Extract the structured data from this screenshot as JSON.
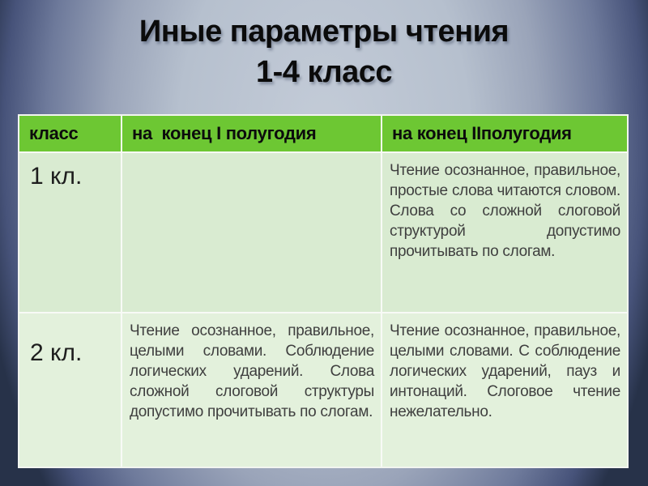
{
  "title": {
    "line1": "Иные параметры чтения",
    "line2": "1-4 класс"
  },
  "table": {
    "headers": [
      "класс",
      "на  конец I полугодия",
      "на конец IIполугодия"
    ],
    "rows": [
      {
        "klass": "1 кл.",
        "sem1": "",
        "sem2": "Чтение осознанное, правильное, простые слова читаются словом. Слова со сложной слоговой структурой допустимо прочитывать по слогам."
      },
      {
        "klass": "2 кл.",
        "sem1": "Чтение осознанное, правильное, целыми словами. Соблюдение логических ударений. Слова сложной слоговой структуры допустимо прочитывать по слогам.",
        "sem2": "Чтение осознанное, правильное, целыми словами. С соблюдение логических ударений, пауз и интонаций. Слоговое чтение нежелательно."
      }
    ]
  },
  "colors": {
    "header_green": "#6dc733",
    "row1_green": "#d9ebd1",
    "row2_green": "#e3f1dc",
    "background_center": "#b6c0ce",
    "background_corner": "#273249",
    "title_text": "#0b0b0b"
  }
}
